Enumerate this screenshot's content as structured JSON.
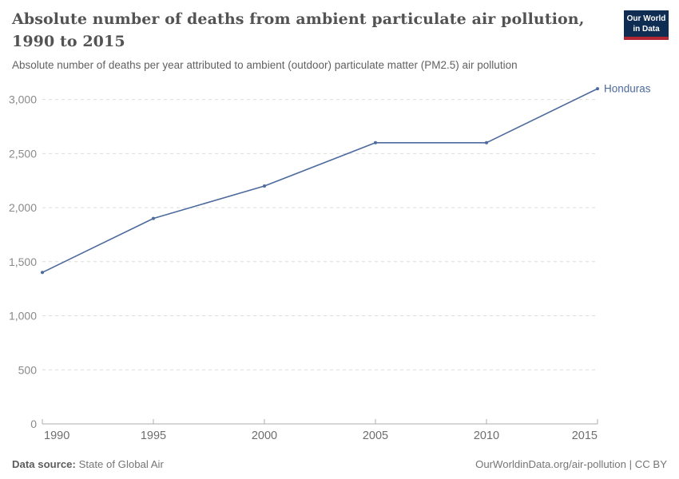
{
  "header": {
    "title_lines": [
      "Absolute number of deaths from ambient particulate air pollution,",
      "1990 to 2015"
    ],
    "subtitle": "Absolute number of deaths per year attributed to ambient (outdoor) particulate matter (PM2.5) air pollution"
  },
  "logo": {
    "line1": "Our World",
    "line2": "in Data",
    "bg_color": "#0f2d52",
    "bar_color": "#b02633"
  },
  "chart_data": {
    "type": "line",
    "title": "Absolute number of deaths from ambient particulate air pollution, 1990 to 2015",
    "subtitle": "Absolute number of deaths per year attributed to ambient (outdoor) particulate matter (PM2.5) air pollution",
    "x": [
      1990,
      1995,
      2000,
      2005,
      2010,
      2015
    ],
    "series": [
      {
        "name": "Honduras",
        "values": [
          1400,
          1900,
          2200,
          2600,
          2600,
          3100
        ],
        "color": "#4c6a9c"
      }
    ],
    "xticks": [
      1990,
      1995,
      2000,
      2005,
      2010,
      2015
    ],
    "yticks": [
      0,
      500,
      1000,
      1500,
      2000,
      2500,
      3000
    ],
    "xlim": [
      1990,
      2015
    ],
    "ylim": [
      0,
      3100
    ],
    "xlabel": "",
    "ylabel": "",
    "grid": "horizontal-dashed",
    "legend": "entity-label-right-of-line"
  },
  "footer": {
    "source_label": "Data source:",
    "source_value": "State of Global Air",
    "credit": "OurWorldinData.org/air-pollution | CC BY"
  },
  "colors": {
    "accent": "#4c6a9c",
    "grid": "#dcdcdc",
    "axis": "#adadad",
    "y_tick_label": "#8a8a8a",
    "x_tick_label": "#6e6e6e",
    "title": "#535353",
    "subtitle": "#616161",
    "footer": "#757575"
  }
}
